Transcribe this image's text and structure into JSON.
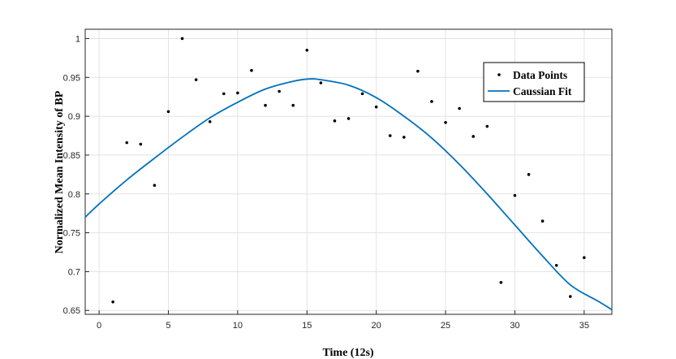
{
  "chart_data": {
    "type": "scatter",
    "xlabel": "Time (12s)",
    "ylabel": "Normalized Mean Intensity of BP",
    "xlim": [
      -1,
      37
    ],
    "ylim": [
      0.645,
      1.012
    ],
    "xticks": [
      0,
      5,
      10,
      15,
      20,
      25,
      30,
      35
    ],
    "yticks": [
      0.65,
      0.7,
      0.75,
      0.8,
      0.85,
      0.9,
      0.95,
      1
    ],
    "ytick_labels": [
      "0.65",
      "0.7",
      "0.75",
      "0.8",
      "0.85",
      "0.9",
      "0.95",
      "1"
    ],
    "grid": true,
    "legend_position": "top-right",
    "series": [
      {
        "name": "Data Points",
        "kind": "scatter",
        "color": "#000000",
        "x": [
          1,
          2,
          3,
          4,
          5,
          6,
          7,
          8,
          9,
          10,
          11,
          12,
          13,
          14,
          15,
          16,
          17,
          18,
          19,
          20,
          21,
          22,
          23,
          24,
          25,
          26,
          27,
          28,
          29,
          30,
          31,
          32,
          33,
          34,
          35
        ],
        "y": [
          0.661,
          0.866,
          0.864,
          0.811,
          0.906,
          1.0,
          0.947,
          0.893,
          0.929,
          0.93,
          0.959,
          0.914,
          0.932,
          0.914,
          0.985,
          0.943,
          0.894,
          0.897,
          0.929,
          0.912,
          0.875,
          0.873,
          0.958,
          0.919,
          0.892,
          0.91,
          0.874,
          0.887,
          0.686,
          0.798,
          0.825,
          0.765,
          0.708,
          0.668,
          0.718
        ]
      },
      {
        "name": "Caussian Fit",
        "kind": "line",
        "color": "#0072BD",
        "x": [
          -1,
          0,
          2,
          4,
          6,
          8,
          10,
          12,
          14,
          15.2,
          16,
          18,
          20,
          22,
          24,
          26,
          28,
          30,
          32,
          34,
          36,
          37
        ],
        "y": [
          0.77,
          0.787,
          0.818,
          0.846,
          0.873,
          0.898,
          0.918,
          0.935,
          0.945,
          0.948,
          0.947,
          0.94,
          0.924,
          0.9,
          0.872,
          0.838,
          0.8,
          0.76,
          0.72,
          0.683,
          0.662,
          0.651
        ]
      }
    ]
  }
}
